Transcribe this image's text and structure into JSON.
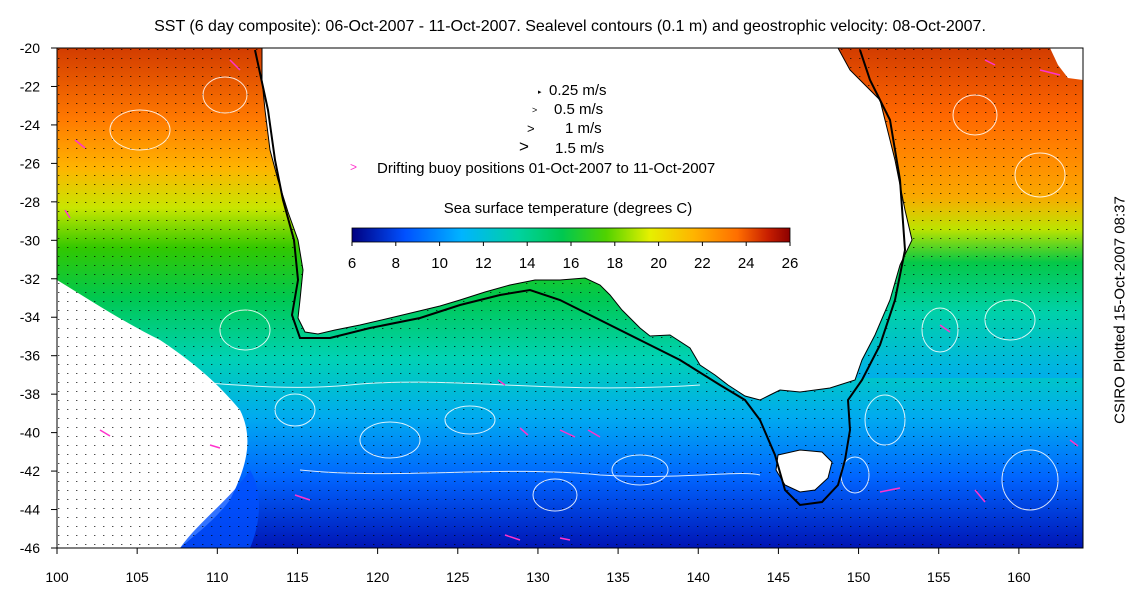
{
  "title": "SST (6 day composite): 06-Oct-2007 - 11-Oct-2007. Sealevel contours (0.1 m) and geostrophic velocity: 08-Oct-2007.",
  "credit": "CSIRO Plotted 15-Oct-2007 08:37",
  "velocity_legend": [
    {
      "label": "0.25 m/s",
      "symbol": "arrow-tiny"
    },
    {
      "label": "0.5 m/s",
      "symbol": "arrow-small"
    },
    {
      "label": "1 m/s",
      "symbol": "arrow-medium"
    },
    {
      "label": "1.5 m/s",
      "symbol": "arrow-large"
    }
  ],
  "buoy_legend": {
    "label": "Drifting buoy positions 01-Oct-2007 to 11-Oct-2007",
    "color": "#ff33cc"
  },
  "colorbar": {
    "title": "Sea surface temperature (degrees C)",
    "ticks": [
      "6",
      "8",
      "10",
      "12",
      "14",
      "16",
      "18",
      "20",
      "22",
      "24",
      "26"
    ],
    "colors": [
      "#000080",
      "#0050ff",
      "#00b4ff",
      "#00d2a0",
      "#00c850",
      "#50d200",
      "#e6f000",
      "#ffb400",
      "#ff6e00",
      "#c81e00",
      "#8c0000"
    ]
  },
  "axes": {
    "x_ticks": [
      "100",
      "105",
      "110",
      "115",
      "120",
      "125",
      "130",
      "135",
      "140",
      "145",
      "150",
      "155",
      "160"
    ],
    "y_ticks": [
      "-20",
      "-22",
      "-24",
      "-26",
      "-28",
      "-30",
      "-32",
      "-34",
      "-36",
      "-38",
      "-40",
      "-42",
      "-44",
      "-46"
    ]
  },
  "colors": {
    "land": "#ffffff",
    "coast": "#000000",
    "contour": "#ffffff",
    "buoy": "#ff33cc"
  }
}
